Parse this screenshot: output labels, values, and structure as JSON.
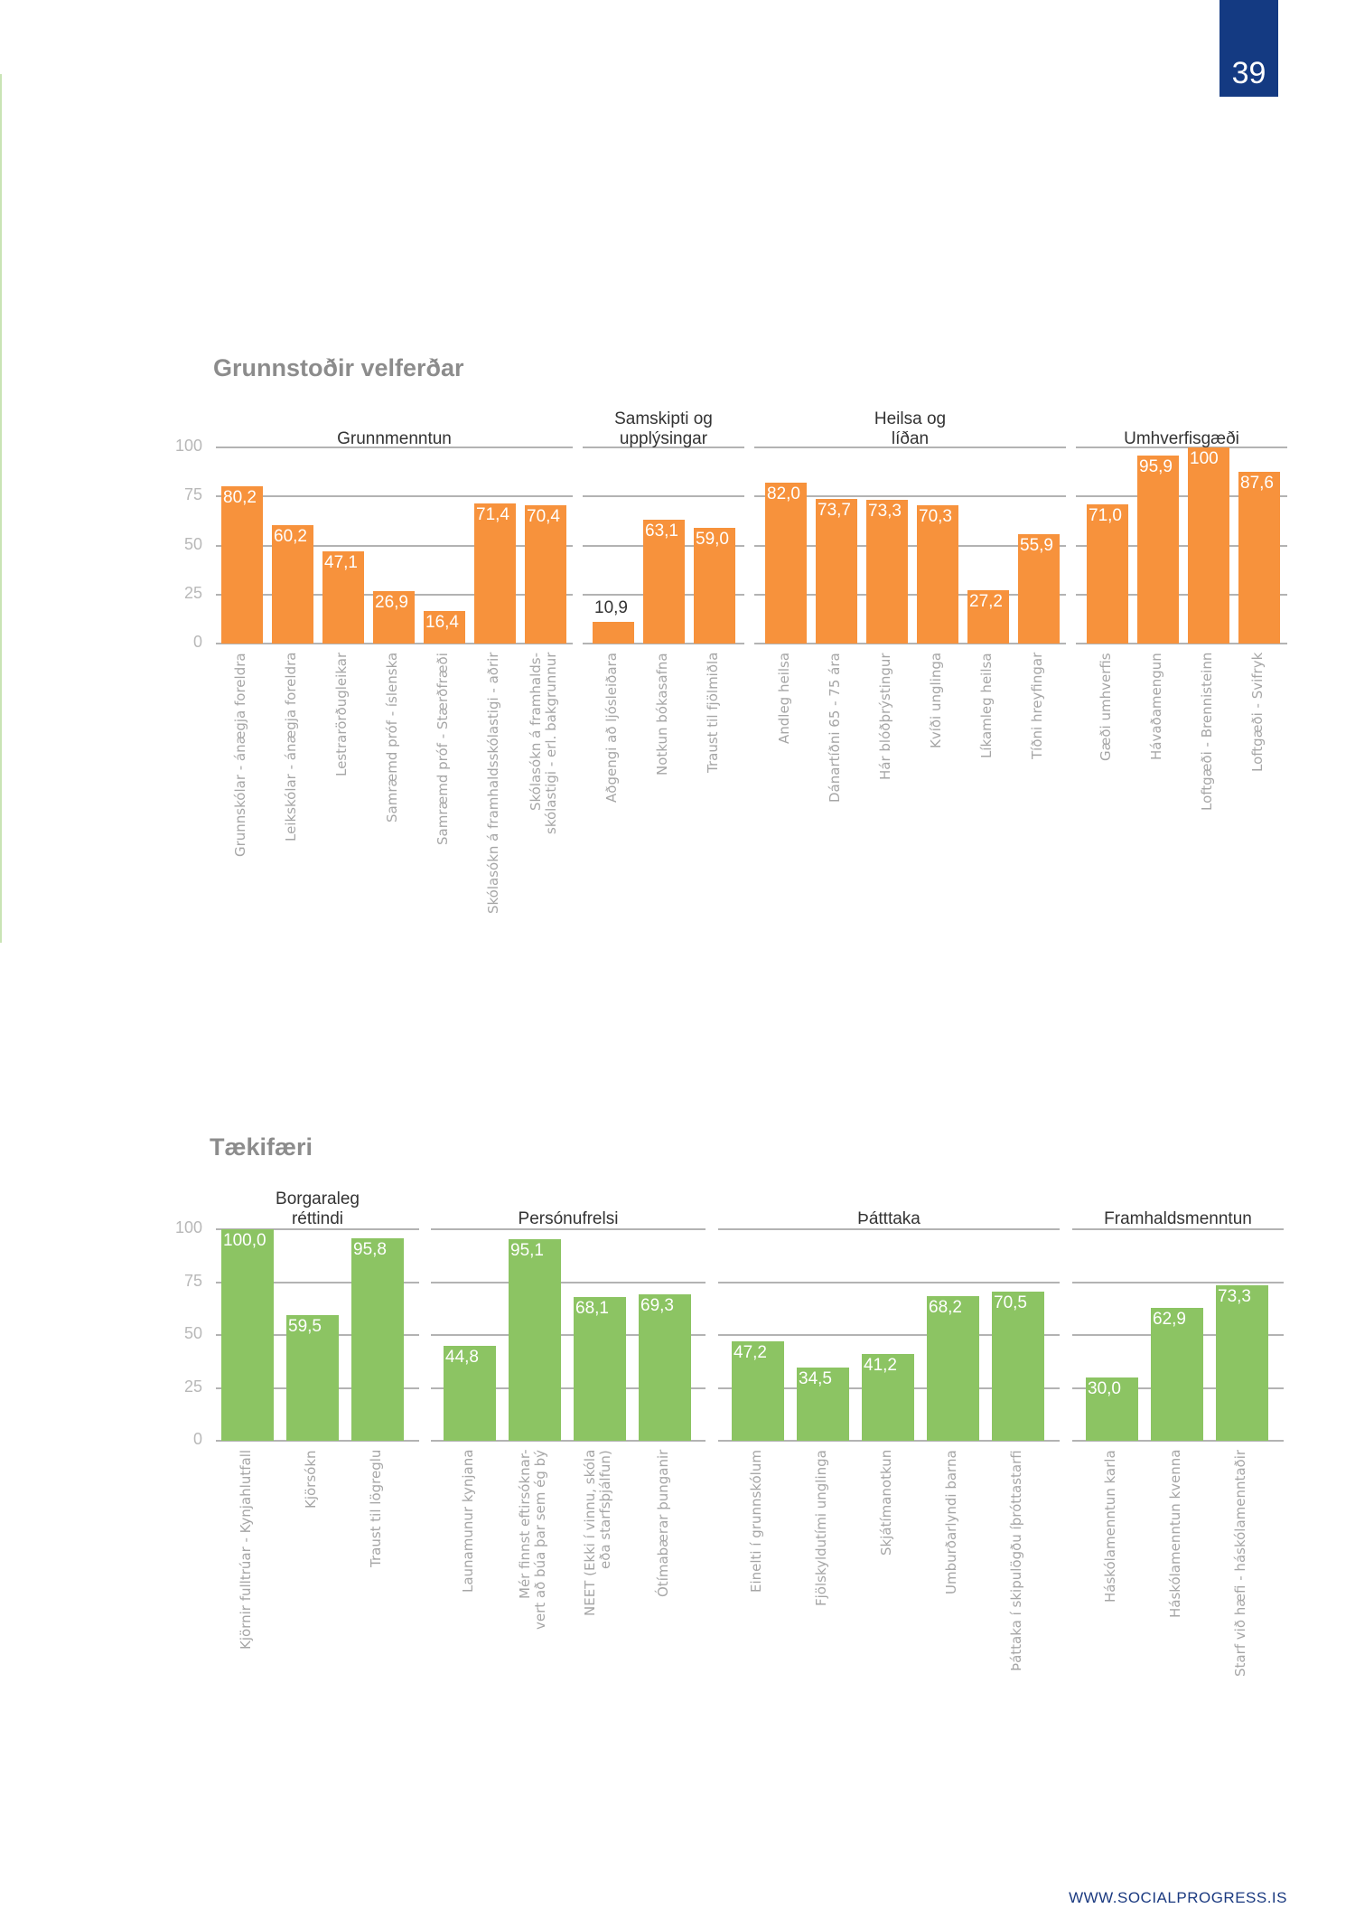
{
  "page_number": "39",
  "footer": "WWW.SOCIALPROGRESS.IS",
  "colors": {
    "orange": "#f7923c",
    "green": "#8cc463",
    "page_box": "#143a82"
  },
  "chart_data": [
    {
      "type": "bar",
      "title": "Grunnstoðir velferðar",
      "ylim": [
        0,
        100
      ],
      "yticks": [
        "0",
        "25",
        "50",
        "75",
        "100"
      ],
      "color": "#f7923c",
      "groups": [
        {
          "name": "Grunnmenntun",
          "items": [
            {
              "label": "Grunnskólar - ánægja foreldra",
              "value": 80.2,
              "value_text": "80,2"
            },
            {
              "label": "Leikskólar - ánægja foreldra",
              "value": 60.2,
              "value_text": "60,2"
            },
            {
              "label": "Lestrarörðugleikar",
              "value": 47.1,
              "value_text": "47,1"
            },
            {
              "label": "Samræmd próf - íslenska",
              "value": 26.9,
              "value_text": "26,9"
            },
            {
              "label": "Samræmd próf - Stærðfræði",
              "value": 16.4,
              "value_text": "16,4"
            },
            {
              "label": "Skólasókn á framhaldsskólastigi - aðrir",
              "value": 71.4,
              "value_text": "71,4"
            },
            {
              "label": "Skólasókn á framhalds-\nskólastigi - erl. bakgrunnur",
              "value": 70.4,
              "value_text": "70,4"
            }
          ]
        },
        {
          "name": "Samskipti  og\nupplýsingar",
          "items": [
            {
              "label": "Aðgengi að ljósleiðara",
              "value": 10.9,
              "value_text": "10,9"
            },
            {
              "label": "Notkun bókasafna",
              "value": 63.1,
              "value_text": "63,1"
            },
            {
              "label": "Traust til fjölmiðla",
              "value": 59.0,
              "value_text": "59,0"
            }
          ]
        },
        {
          "name": "Heilsa  og\nlíðan",
          "items": [
            {
              "label": "Andleg heilsa",
              "value": 82.0,
              "value_text": "82,0"
            },
            {
              "label": "Dánartíðni 65 - 75 ára",
              "value": 73.7,
              "value_text": "73,7"
            },
            {
              "label": "Hár blóðþrýstingur",
              "value": 73.3,
              "value_text": "73,3"
            },
            {
              "label": "Kvíði unglinga",
              "value": 70.3,
              "value_text": "70,3"
            },
            {
              "label": "Líkamleg heilsa",
              "value": 27.2,
              "value_text": "27,2"
            },
            {
              "label": "Tíðni hreyfingar",
              "value": 55.9,
              "value_text": "55,9"
            }
          ]
        },
        {
          "name": "Umhverfisgæði",
          "items": [
            {
              "label": "Gæði umhverfis",
              "value": 71.0,
              "value_text": "71,0"
            },
            {
              "label": "Hávaðamengun",
              "value": 95.9,
              "value_text": "95,9"
            },
            {
              "label": "Loftgæði - Brennisteinn",
              "value": 100,
              "value_text": "100"
            },
            {
              "label": "Loftgæði - Svifryk",
              "value": 87.6,
              "value_text": "87,6"
            }
          ]
        }
      ]
    },
    {
      "type": "bar",
      "title": "Tækifæri",
      "ylim": [
        0,
        100
      ],
      "yticks": [
        "0",
        "25",
        "50",
        "75",
        "100"
      ],
      "color": "#8cc463",
      "groups": [
        {
          "name": "Borgaraleg\nréttindi",
          "items": [
            {
              "label": "Kjörnir fulltrúar - Kynjahlutfall",
              "value": 100.0,
              "value_text": "100,0"
            },
            {
              "label": "Kjörsókn",
              "value": 59.5,
              "value_text": "59,5"
            },
            {
              "label": "Traust til lögreglu",
              "value": 95.8,
              "value_text": "95,8"
            }
          ]
        },
        {
          "name": "Persónufrelsi",
          "items": [
            {
              "label": "Launamunur kynjana",
              "value": 44.8,
              "value_text": "44,8"
            },
            {
              "label": "Mér finnst eftirsóknar-\nvert að búa þar sem ég bý",
              "value": 95.1,
              "value_text": "95,1"
            },
            {
              "label": "NEET (Ekki í vinnu, skóla\neða starfsþjálfun)",
              "value": 68.1,
              "value_text": "68,1"
            },
            {
              "label": "Ótímabærar þunganir",
              "value": 69.3,
              "value_text": "69,3"
            }
          ]
        },
        {
          "name": "Þátttaka",
          "items": [
            {
              "label": "Einelti í grunnskólum",
              "value": 47.2,
              "value_text": "47,2"
            },
            {
              "label": "Fjölskyldutími unglinga",
              "value": 34.5,
              "value_text": "34,5"
            },
            {
              "label": "Skjátímanotkun",
              "value": 41.2,
              "value_text": "41,2"
            },
            {
              "label": "Umburðarlyndi barna",
              "value": 68.2,
              "value_text": "68,2"
            },
            {
              "label": "Þáttaka í skipulögðu íþróttastarfi",
              "value": 70.5,
              "value_text": "70,5"
            }
          ]
        },
        {
          "name": "Framhaldsmenntun",
          "items": [
            {
              "label": "Háskólamenntun karla",
              "value": 30.0,
              "value_text": "30,0"
            },
            {
              "label": "Háskólamenntun kvenna",
              "value": 62.9,
              "value_text": "62,9"
            },
            {
              "label": "Starf við hæfi - háskólamenntaðir",
              "value": 73.3,
              "value_text": "73,3"
            }
          ]
        }
      ]
    }
  ]
}
